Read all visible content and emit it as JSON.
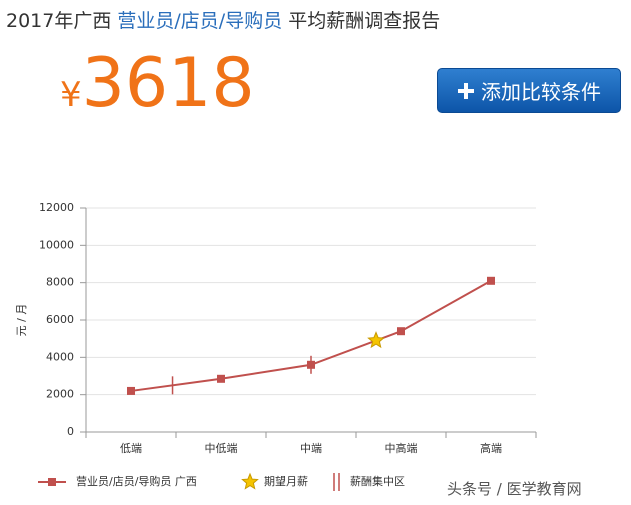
{
  "header": {
    "lead": "2017年广西",
    "job": "营业员/店员/导购员",
    "tail": "平均薪酬调查报告"
  },
  "salary": {
    "currency": "¥",
    "value": 3618
  },
  "button": "添加比较条件",
  "watermark": "头条号 / 医学教育网",
  "chart_data": {
    "type": "line",
    "y_label": "元 / 月",
    "categories": [
      "低端",
      "中低端",
      "中端",
      "中高端",
      "高端"
    ],
    "series": [
      {
        "name": "营业员/店员/导购员 广西",
        "color": "#c0504d",
        "values": [
          2200,
          2850,
          3600,
          5400,
          8100
        ]
      }
    ],
    "expected_salary": {
      "name": "期望月薪",
      "value": 4900,
      "color": "#f5c400"
    },
    "salary_concentration": {
      "name": "薪酬集中区",
      "values": [
        2500,
        3600
      ],
      "color": "#c0504d"
    },
    "ylim": [
      0,
      12000
    ],
    "yticks": [
      0,
      2000,
      4000,
      6000,
      8000,
      10000,
      12000
    ],
    "grid": true
  }
}
